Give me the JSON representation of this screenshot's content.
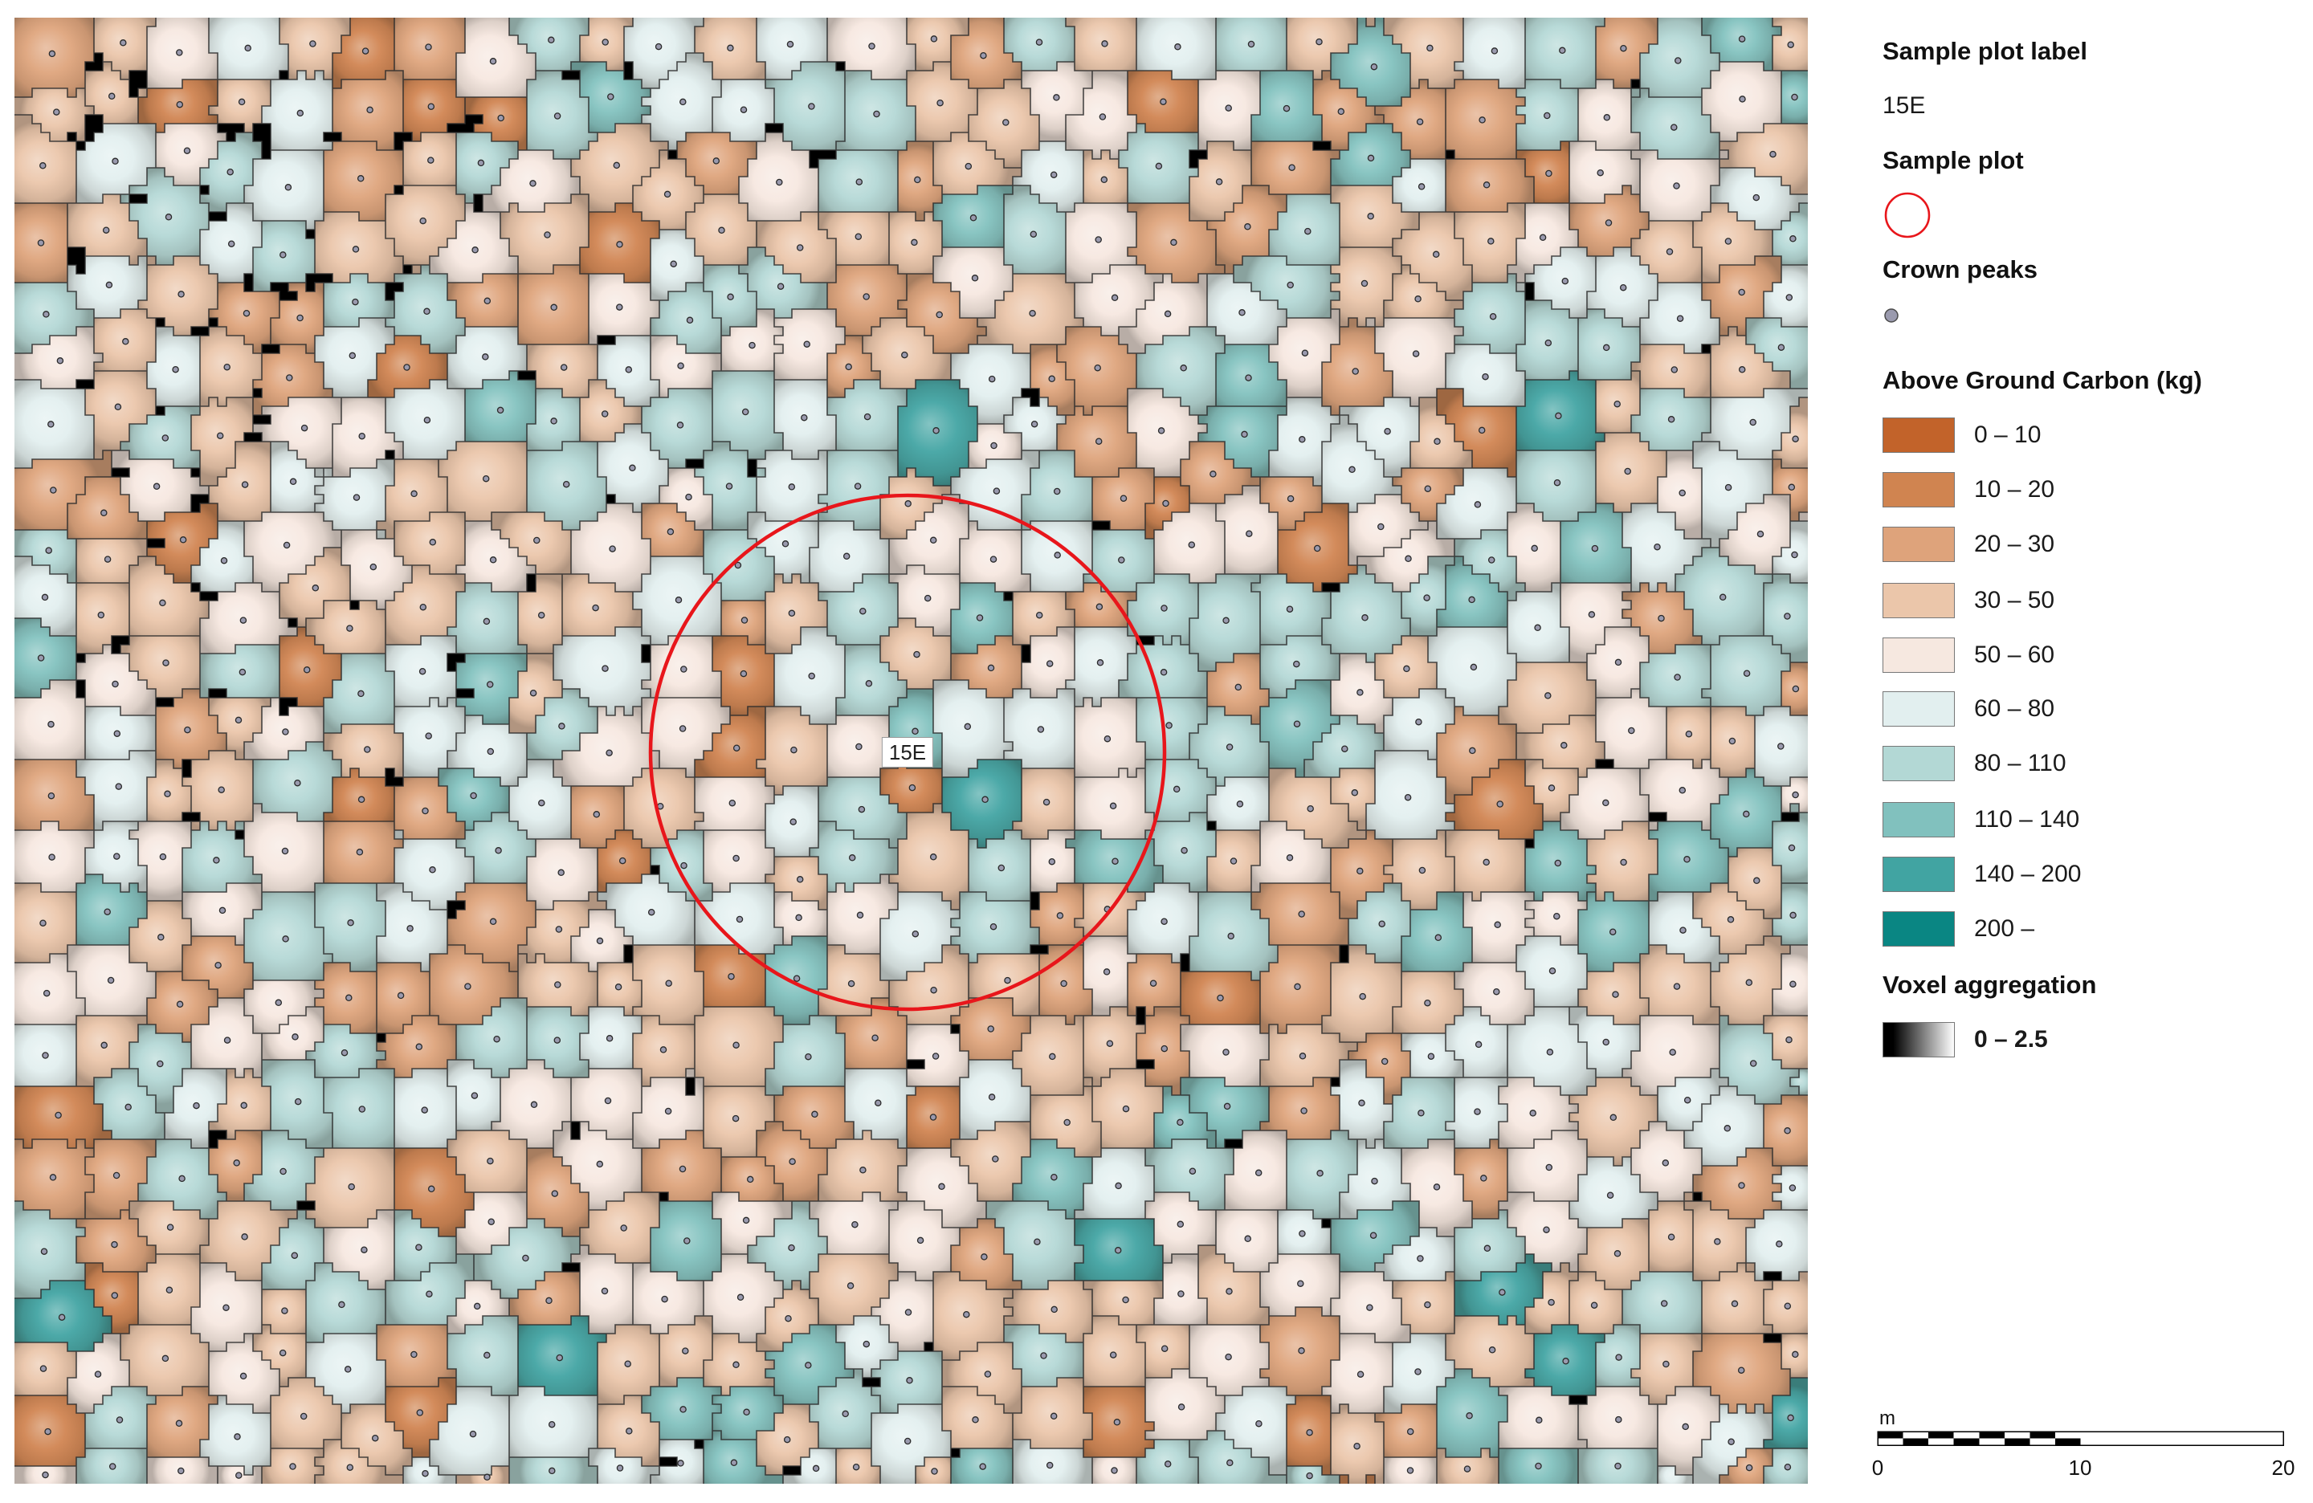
{
  "map": {
    "plot_label": "15E",
    "plot_circle_color": "#e8161b",
    "crown_peak_color": "#9a9aae",
    "crown_boundary_color": "#2c2c2c",
    "voxel_color": "#000000"
  },
  "legend": {
    "plot_label_title": "Sample plot label",
    "plot_label_value": "15E",
    "sample_plot_title": "Sample plot",
    "crown_peaks_title": "Crown peaks",
    "carbon_title": "Above Ground Carbon (kg)",
    "carbon_classes": [
      {
        "label": "0 – 10",
        "color": "#c2632a"
      },
      {
        "label": "10 – 20",
        "color": "#d08450"
      },
      {
        "label": "20 – 30",
        "color": "#dea37b"
      },
      {
        "label": "30 – 50",
        "color": "#ebc6aa"
      },
      {
        "label": "50 – 60",
        "color": "#f6e8e0"
      },
      {
        "label": "60 – 80",
        "color": "#e2efef"
      },
      {
        "label": "80 – 110",
        "color": "#b3d8d5"
      },
      {
        "label": "110 – 140",
        "color": "#81c1be"
      },
      {
        "label": "140 – 200",
        "color": "#41a4a2"
      },
      {
        "label": "200 –",
        "color": "#0a8683"
      }
    ],
    "voxel_title": "Voxel aggregation",
    "voxel_range": "0 – 2.5",
    "voxel_gradient": [
      "#000000",
      "#ffffff"
    ]
  },
  "scale_bar": {
    "unit": "m",
    "ticks": [
      "0",
      "10",
      "20"
    ]
  }
}
